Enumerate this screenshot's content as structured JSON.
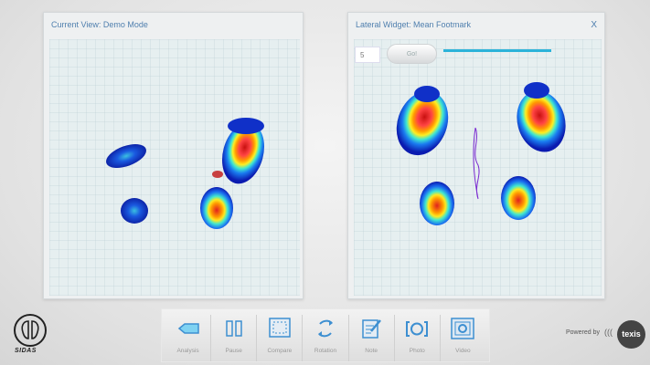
{
  "left_panel": {
    "title": "Current View: Demo Mode"
  },
  "right_panel": {
    "title": "Lateral Widget: Mean Footmark",
    "close_label": "X",
    "input_value": "5",
    "go_label": "Go!"
  },
  "toolbar": {
    "items": [
      {
        "label": "Analysis",
        "icon": "analysis-icon"
      },
      {
        "label": "Pause",
        "icon": "pause-icon"
      },
      {
        "label": "Compare",
        "icon": "compare-icon"
      },
      {
        "label": "Rotation",
        "icon": "rotation-icon"
      },
      {
        "label": "Note",
        "icon": "note-icon"
      },
      {
        "label": "Photo",
        "icon": "photo-icon"
      },
      {
        "label": "Video",
        "icon": "video-icon"
      }
    ]
  },
  "brand": {
    "logo": "SIDAS",
    "powered_by": "Powered by",
    "partner": "texis",
    "partner_bracket": "((("
  },
  "colors": {
    "accent": "#4f7fae",
    "slider": "#2cb3d9",
    "icon": "#3d8fd1"
  }
}
